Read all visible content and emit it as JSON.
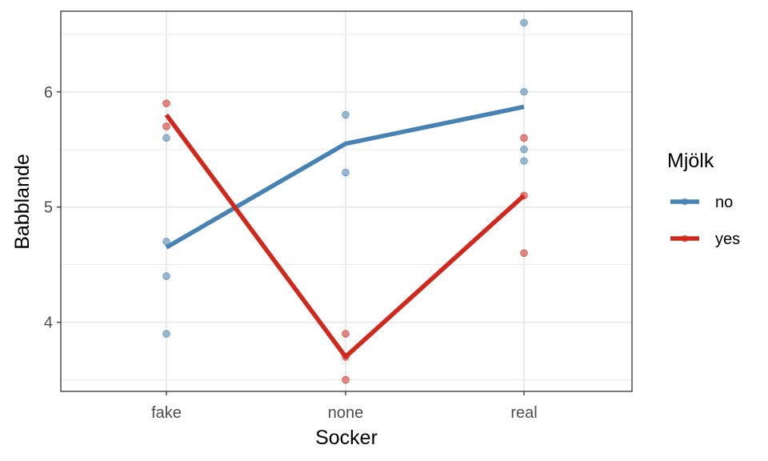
{
  "chart_data": {
    "type": "line",
    "title": "",
    "xlabel": "Socker",
    "ylabel": "Babblande",
    "categories": [
      "fake",
      "none",
      "real"
    ],
    "ylim": [
      3.4,
      6.7
    ],
    "yticks": [
      4,
      5,
      6
    ],
    "grid": true,
    "legend": {
      "title": "Mjölk",
      "placement": "right"
    },
    "series": [
      {
        "name": "no",
        "color": "#4682B4",
        "means": [
          4.65,
          5.55,
          5.87
        ],
        "points": [
          {
            "x": "fake",
            "y": 5.6
          },
          {
            "x": "fake",
            "y": 4.7
          },
          {
            "x": "fake",
            "y": 4.4
          },
          {
            "x": "fake",
            "y": 3.9
          },
          {
            "x": "none",
            "y": 5.8
          },
          {
            "x": "none",
            "y": 5.3
          },
          {
            "x": "real",
            "y": 6.6
          },
          {
            "x": "real",
            "y": 6.0
          },
          {
            "x": "real",
            "y": 5.5
          },
          {
            "x": "real",
            "y": 5.4
          }
        ]
      },
      {
        "name": "yes",
        "color": "#D1281B",
        "means": [
          5.8,
          3.7,
          5.1
        ],
        "points": [
          {
            "x": "fake",
            "y": 5.9
          },
          {
            "x": "fake",
            "y": 5.7
          },
          {
            "x": "none",
            "y": 3.9
          },
          {
            "x": "none",
            "y": 3.7
          },
          {
            "x": "none",
            "y": 3.5
          },
          {
            "x": "real",
            "y": 5.6
          },
          {
            "x": "real",
            "y": 5.1
          },
          {
            "x": "real",
            "y": 4.6
          }
        ]
      }
    ]
  }
}
